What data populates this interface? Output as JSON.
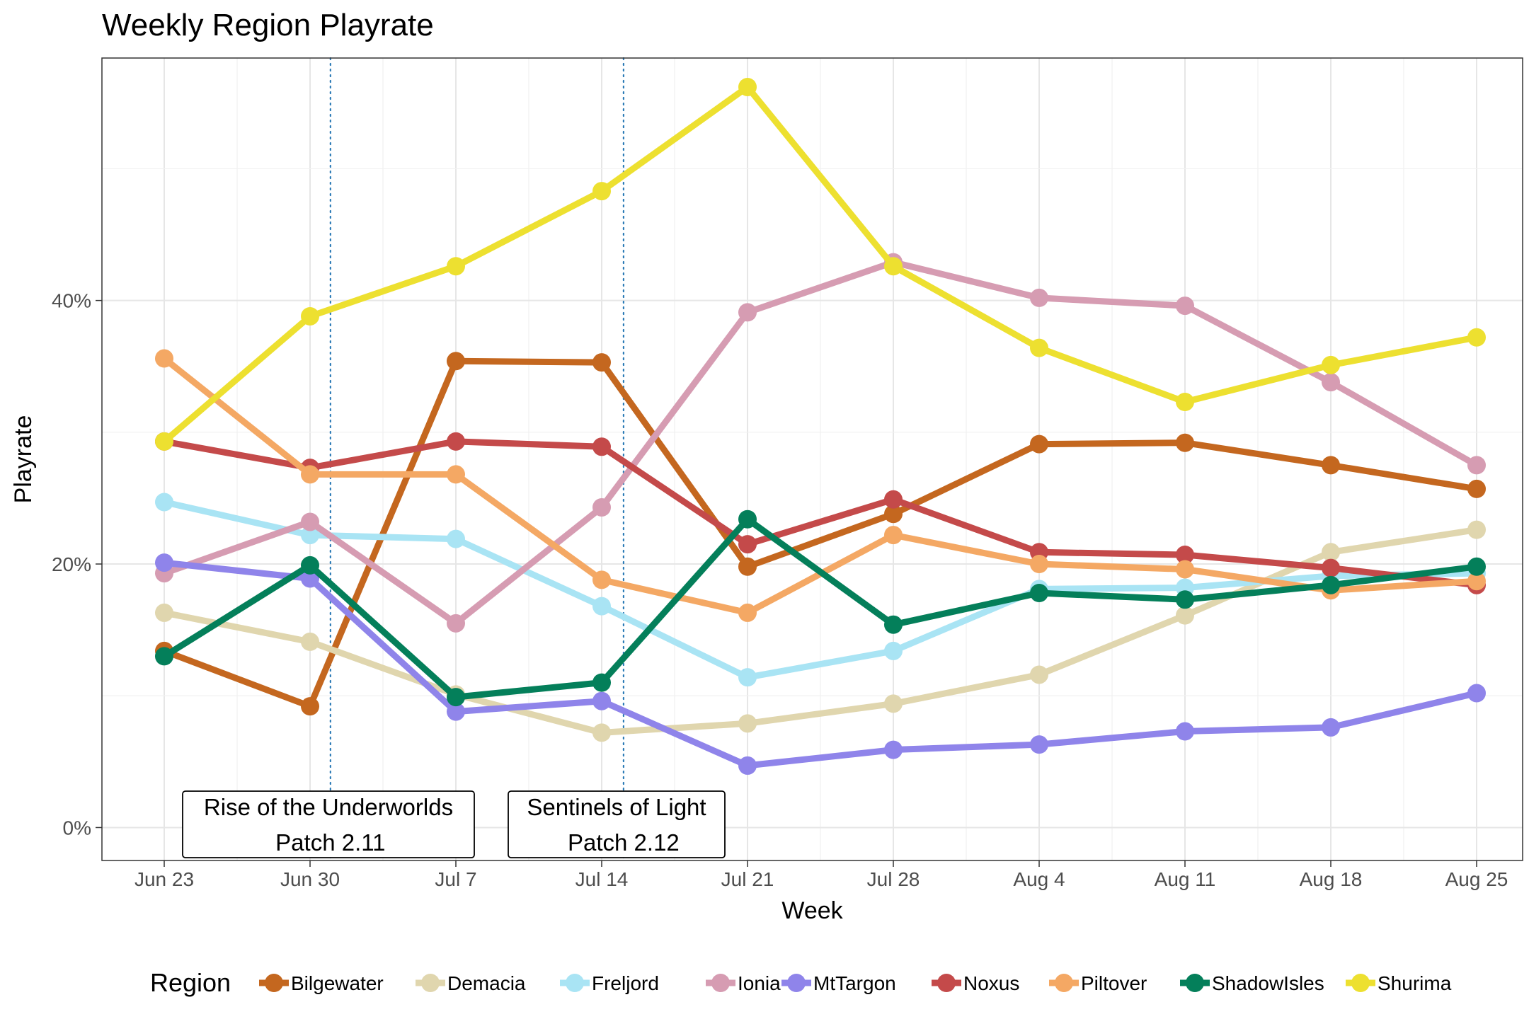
{
  "chart_data": {
    "type": "line",
    "title": "Weekly Region Playrate",
    "xlabel": "Week",
    "ylabel": "Playrate",
    "x": [
      "Jun 23",
      "Jun 30",
      "Jul 7",
      "Jul 14",
      "Jul 21",
      "Jul 28",
      "Aug 4",
      "Aug 11",
      "Aug 18",
      "Aug 25"
    ],
    "ylim": [
      -2.5,
      58.4
    ],
    "yticks": [
      0,
      20,
      40
    ],
    "ytick_labels": [
      "0%",
      "20%",
      "40%"
    ],
    "grid": true,
    "legend_title": "Region",
    "legend_position": "bottom",
    "series": [
      {
        "name": "Bilgewater",
        "color": "#C4671F",
        "values": [
          13.4,
          9.2,
          35.4,
          35.3,
          19.8,
          23.8,
          29.1,
          29.2,
          27.5,
          25.7
        ]
      },
      {
        "name": "Demacia",
        "color": "#E0D6AE",
        "values": [
          16.3,
          14.1,
          10.1,
          7.2,
          7.9,
          9.4,
          11.6,
          16.1,
          20.9,
          22.6
        ]
      },
      {
        "name": "Freljord",
        "color": "#A9E4F4",
        "values": [
          24.7,
          22.2,
          21.9,
          16.8,
          11.4,
          13.4,
          18.1,
          18.2,
          19.1,
          19.3
        ]
      },
      {
        "name": "Ionia",
        "color": "#D69CB2",
        "values": [
          19.3,
          23.2,
          15.5,
          24.3,
          39.1,
          42.9,
          40.2,
          39.6,
          33.8,
          27.5
        ]
      },
      {
        "name": "MtTargon",
        "color": "#8F84EA",
        "values": [
          20.1,
          18.9,
          8.8,
          9.6,
          4.7,
          5.9,
          6.3,
          7.3,
          7.6,
          10.2
        ]
      },
      {
        "name": "Noxus",
        "color": "#C44A4A",
        "values": [
          29.3,
          27.3,
          29.3,
          28.9,
          21.5,
          24.9,
          20.9,
          20.7,
          19.7,
          18.4
        ]
      },
      {
        "name": "Piltover",
        "color": "#F4A864",
        "values": [
          35.6,
          26.8,
          26.8,
          18.8,
          16.3,
          22.2,
          20.0,
          19.6,
          18.0,
          18.7
        ]
      },
      {
        "name": "ShadowIsles",
        "color": "#047F5A",
        "values": [
          13.0,
          19.9,
          9.9,
          11.0,
          23.4,
          15.4,
          17.8,
          17.3,
          18.4,
          19.8
        ]
      },
      {
        "name": "Shurima",
        "color": "#EDE030",
        "values": [
          29.3,
          38.8,
          42.6,
          48.3,
          56.2,
          42.6,
          36.4,
          32.3,
          35.1,
          37.2
        ]
      }
    ],
    "annotations": [
      {
        "line1": "Rise of the Underworlds",
        "line2": "Patch 2.11",
        "x_position": 1.14
      },
      {
        "line1": "Sentinels of Light",
        "line2": "Patch 2.12",
        "x_position": 3.15
      }
    ]
  }
}
